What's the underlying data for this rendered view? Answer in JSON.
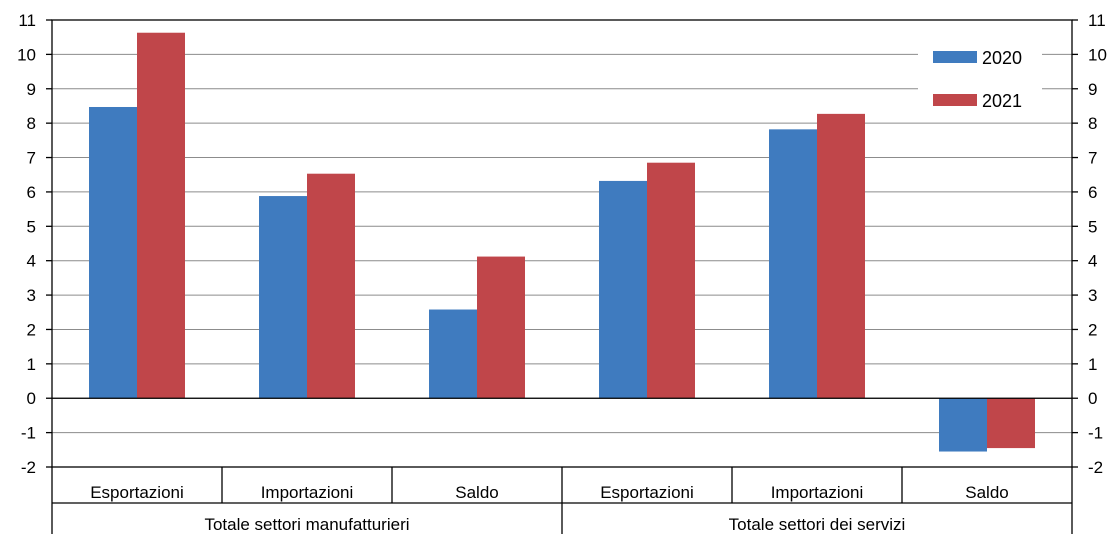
{
  "chart_data": {
    "type": "bar",
    "groups": [
      {
        "label": "Totale settori manufatturieri",
        "categories": [
          "Esportazioni",
          "Importazioni",
          "Saldo"
        ]
      },
      {
        "label": "Totale settori dei servizi",
        "categories": [
          "Esportazioni",
          "Importazioni",
          "Saldo"
        ]
      }
    ],
    "categories": [
      "Esportazioni",
      "Importazioni",
      "Saldo",
      "Esportazioni",
      "Importazioni",
      "Saldo"
    ],
    "series": [
      {
        "name": "2020",
        "color": "#3f7bbf",
        "values": [
          8.47,
          5.88,
          2.58,
          6.32,
          7.82,
          -1.55
        ]
      },
      {
        "name": "2021",
        "color": "#c0464a",
        "values": [
          10.63,
          6.53,
          4.12,
          6.85,
          8.27,
          -1.45
        ]
      }
    ],
    "ylim": [
      -2,
      11
    ],
    "yticks": [
      -2,
      -1,
      0,
      1,
      2,
      3,
      4,
      5,
      6,
      7,
      8,
      9,
      10,
      11
    ],
    "grid": true,
    "legend_position": "top-right",
    "title": "",
    "xlabel": "",
    "ylabel": ""
  }
}
